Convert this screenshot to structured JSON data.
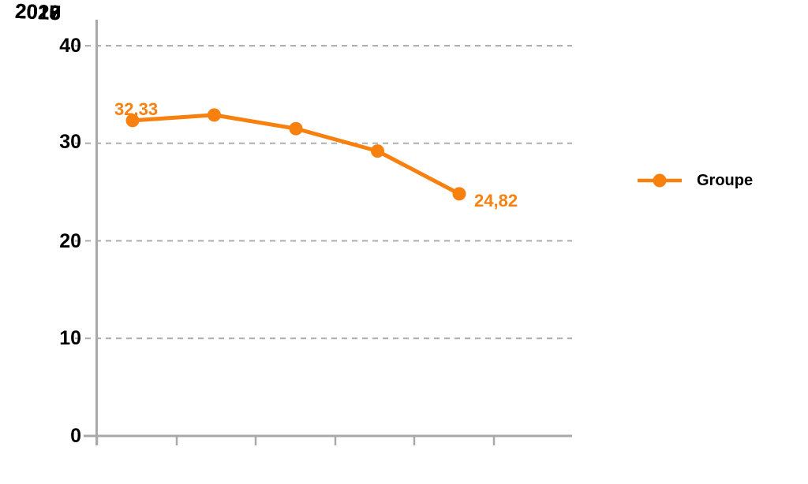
{
  "chart_data": {
    "type": "line",
    "title": "",
    "categories": [
      "2016",
      "2017",
      "2018",
      "2019",
      "2020"
    ],
    "series": [
      {
        "name": "Groupe",
        "values": [
          32.33,
          32.9,
          31.5,
          29.2,
          24.82
        ],
        "color": "#F8800F",
        "marker": "circle"
      }
    ],
    "data_labels": {
      "first": "32,33",
      "last": "24,82"
    },
    "y_tick_labels": [
      "40",
      "30",
      "20",
      "10",
      "0"
    ],
    "y_ticks": [
      40,
      30,
      20,
      10,
      0
    ],
    "ylim": [
      0,
      40
    ],
    "xlabel": "",
    "ylabel": "",
    "grid": "horizontal-dashed",
    "legend_position": "right"
  },
  "legend": {
    "label": "Groupe"
  },
  "colors": {
    "series_orange": "#F8800F",
    "axis_gray": "#A9A9A9",
    "grid_gray": "#AEAEAE",
    "text_black": "#000000",
    "background": "#FFFFFF"
  }
}
